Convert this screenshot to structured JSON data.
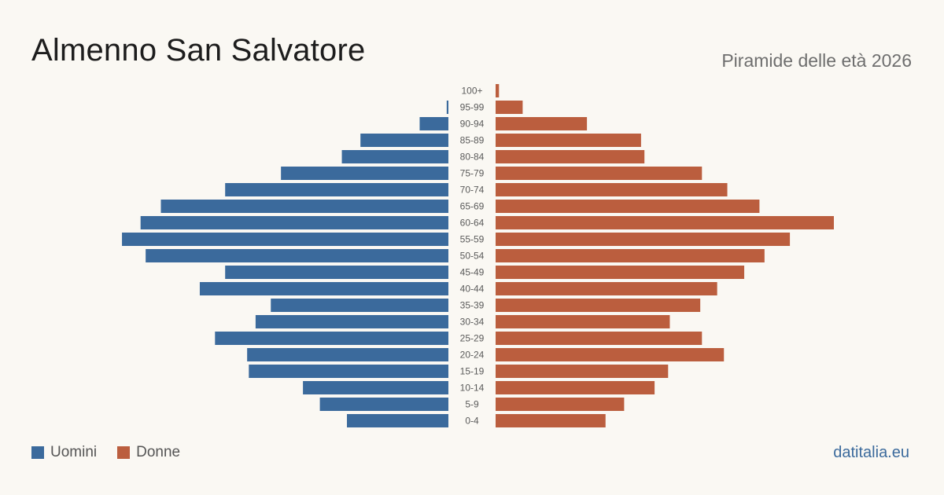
{
  "title": "Almenno San Salvatore",
  "subtitle": "Piramide delle età 2026",
  "source": "datitalia.eu",
  "colors": {
    "male": "#3b6a9c",
    "female": "#bb5e3e",
    "background": "#faf8f3"
  },
  "chart_data": {
    "type": "bar",
    "orientation": "horizontal-pyramid",
    "categories": [
      "100+",
      "95-99",
      "90-94",
      "85-89",
      "80-84",
      "75-79",
      "70-74",
      "65-69",
      "60-64",
      "55-59",
      "50-54",
      "45-49",
      "40-44",
      "35-39",
      "30-34",
      "25-29",
      "20-24",
      "15-19",
      "10-14",
      "5-9",
      "0-4"
    ],
    "series": [
      {
        "name": "Uomini",
        "values": [
          0,
          1,
          17,
          52,
          63,
          99,
          132,
          170,
          182,
          193,
          179,
          132,
          147,
          105,
          114,
          138,
          119,
          118,
          86,
          76,
          60
        ]
      },
      {
        "name": "Donne",
        "values": [
          2,
          16,
          54,
          86,
          88,
          122,
          137,
          156,
          200,
          174,
          159,
          147,
          131,
          121,
          103,
          122,
          135,
          102,
          94,
          76,
          65
        ]
      }
    ],
    "legend_position": "bottom-left",
    "grid": false
  }
}
